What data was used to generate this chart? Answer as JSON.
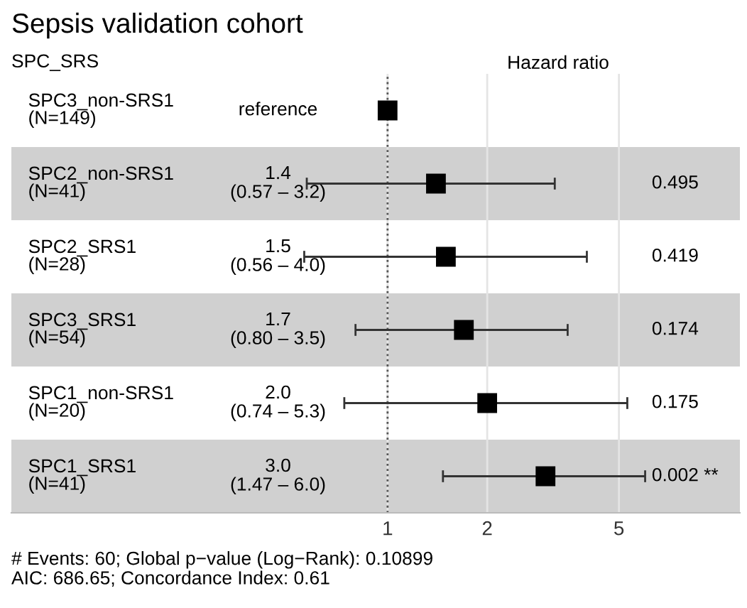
{
  "chart_data": {
    "type": "scatter",
    "orientation": "horizontal",
    "title": "Sepsis validation cohort",
    "ylabel": "SPC_SRS",
    "xlabel": "Hazard ratio",
    "categories": [
      "SPC3_non-SRS1\n(N=149)",
      "SPC2_non-SRS1\n(N=41)",
      "SPC2_SRS1\n(N=28)",
      "SPC3_SRS1\n(N=54)",
      "SPC1_non-SRS1\n(N=20)",
      "SPC1_SRS1\n(N=41)"
    ],
    "values": [
      1,
      1.4,
      1.5,
      1.7,
      2.0,
      3.0
    ],
    "errors": [
      null,
      [
        0.57,
        3.2
      ],
      [
        0.56,
        4.0
      ],
      [
        0.8,
        3.5
      ],
      [
        0.74,
        5.3
      ],
      [
        1.47,
        6.0
      ]
    ],
    "color": "#000000",
    "marker": "square",
    "log": "x",
    "xlim": [
      0.073,
      11.6
    ],
    "xticks": [
      1,
      2,
      5
    ],
    "grid": "x",
    "tick_labels": "x",
    "ref_lines": [
      {
        "axis": "x",
        "value": 1,
        "color": "#555555",
        "line_style": "dotted"
      }
    ],
    "annotations": [
      "reference",
      "1.4\n(0.57 – 3.2)",
      "1.5\n(0.56 – 4.0)",
      "1.7\n(0.80 – 3.5)",
      "2.0\n(0.74 – 5.3)",
      "3.0\n(1.47 – 6.0)",
      "0.495",
      "0.419",
      "0.174",
      "0.175",
      "0.002 **",
      "# Events: 60; Global p−value (Log−Rank): 0.10899\nAIC: 686.65; Concordance Index: 0.61"
    ]
  }
}
